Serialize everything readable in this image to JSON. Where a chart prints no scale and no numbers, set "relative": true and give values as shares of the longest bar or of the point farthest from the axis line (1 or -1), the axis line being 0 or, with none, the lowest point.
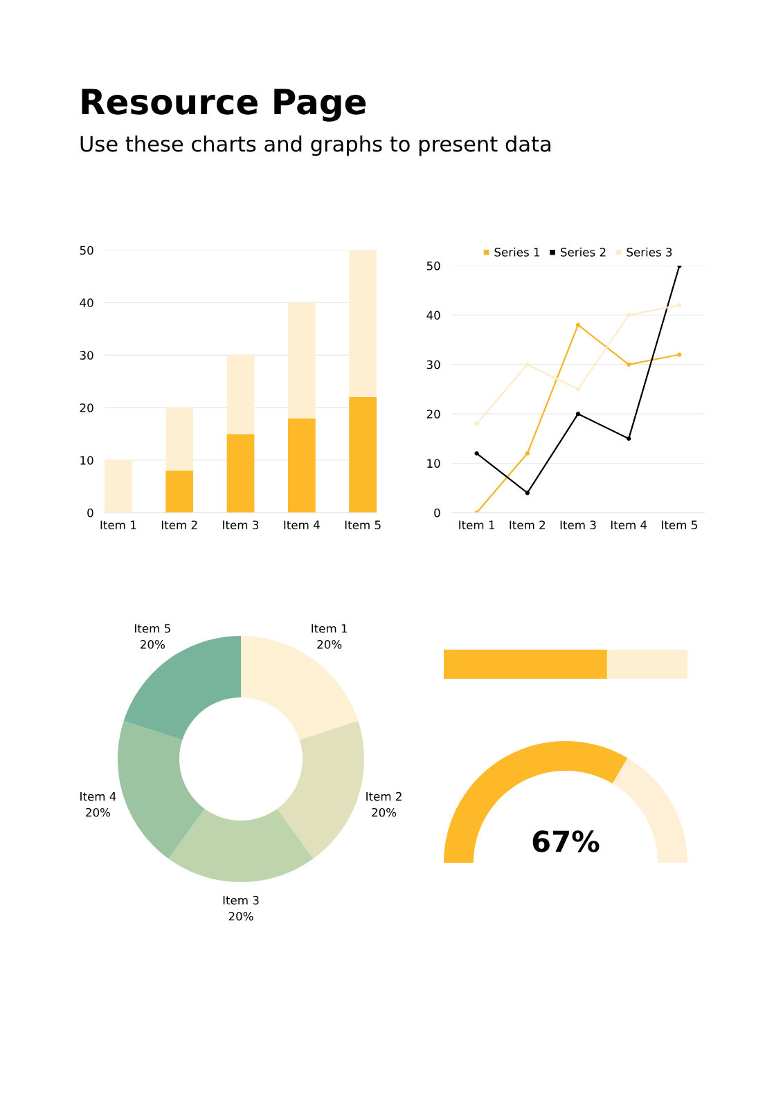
{
  "chart_data": [
    {
      "type": "other",
      "title": "Resource Page",
      "subtitle": "Use these charts and graphs to present data"
    },
    {
      "type": "bar",
      "stacked": true,
      "categories": [
        "Item 1",
        "Item 2",
        "Item 3",
        "Item 4",
        "Item 5"
      ],
      "series": [
        {
          "color": "#fdb927",
          "values": [
            0,
            8,
            15,
            18,
            22
          ]
        },
        {
          "color": "#feefd3",
          "values": [
            10,
            12,
            15,
            22,
            28
          ]
        }
      ],
      "ylim": [
        0,
        50
      ],
      "yticks": [
        0,
        10,
        20,
        30,
        40,
        50
      ],
      "grid": "y"
    },
    {
      "type": "line",
      "categories": [
        "Item 1",
        "Item 2",
        "Item 3",
        "Item 4",
        "Item 5"
      ],
      "series": [
        {
          "name": "Series 1",
          "color": "#f4b52a",
          "values": [
            0,
            12,
            38,
            30,
            32
          ]
        },
        {
          "name": "Series 2",
          "color": "#000000",
          "values": [
            12,
            4,
            20,
            15,
            50
          ]
        },
        {
          "name": "Series 3",
          "color": "#fdebc9",
          "values": [
            18,
            30,
            25,
            40,
            42
          ]
        }
      ],
      "ylim": [
        0,
        50
      ],
      "yticks": [
        0,
        10,
        20,
        30,
        40,
        50
      ],
      "grid": "y",
      "legend": "top",
      "marker": "circle",
      "line_style": "solid"
    },
    {
      "type": "donut",
      "categories": [
        "Item 1",
        "Item 2",
        "Item 3",
        "Item 4",
        "Item 5"
      ],
      "values": [
        20,
        20,
        20,
        20,
        20
      ],
      "colors": [
        "#fef0d3",
        "#e0e0bc",
        "#bed4ac",
        "#9cc4a1",
        "#78b39b"
      ],
      "value_labels": [
        "20%",
        "20%",
        "20%",
        "20%",
        "20%"
      ]
    },
    {
      "type": "bar",
      "orientation": "horizontal",
      "stacked": true,
      "relative": true,
      "categories": [
        null
      ],
      "series": [
        {
          "color": "#fdb927",
          "values": [
            0.67
          ]
        },
        {
          "color": "#feefd3",
          "values": [
            0.33
          ]
        }
      ]
    },
    {
      "type": "donut",
      "categories": [
        null,
        null
      ],
      "values": [
        67,
        33
      ],
      "colors": [
        "#fdb927",
        "#feefd6"
      ],
      "annotations": [
        "67%"
      ]
    }
  ]
}
